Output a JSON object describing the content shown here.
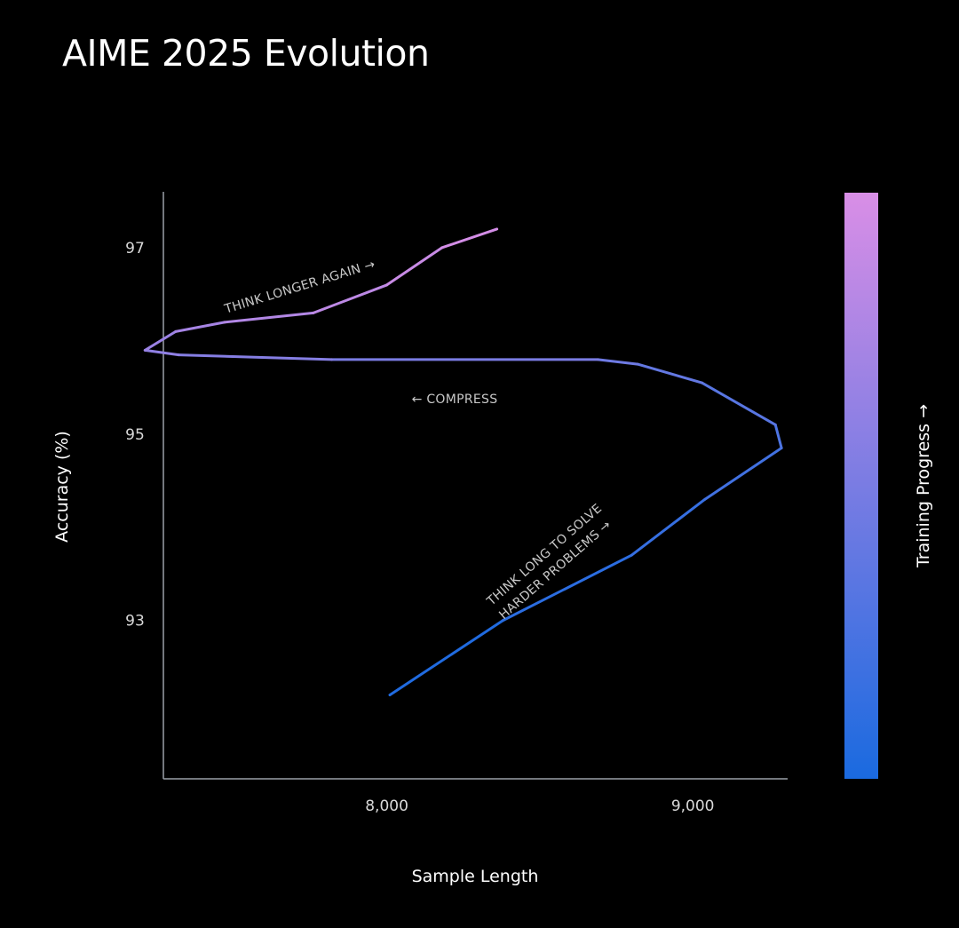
{
  "page": {
    "title": "AIME 2025 Evolution"
  },
  "chart_data": {
    "type": "line",
    "title": "AIME 2025 Evolution",
    "xlabel": "Sample Length",
    "ylabel": "Accuracy (%)",
    "xlim": [
      7270,
      9310
    ],
    "ylim": [
      91.3,
      97.6
    ],
    "xticks": [
      8000,
      9000
    ],
    "xtick_labels": [
      "8,000",
      "9,000"
    ],
    "yticks": [
      93,
      95,
      97
    ],
    "ytick_labels": [
      "93",
      "95",
      "97"
    ],
    "grid": false,
    "colorbar": {
      "label": "Training Progress →",
      "color_start": "#1a6ae0",
      "color_end": "#d98ee6"
    },
    "series": [
      {
        "x": [
          8010,
          8380,
          8800,
          9040,
          9290,
          9270,
          9030,
          8820,
          8690,
          7820,
          7320,
          7210,
          7310,
          7470,
          7760,
          8000,
          8180,
          8360
        ],
        "y": [
          92.2,
          93.0,
          93.7,
          94.3,
          94.85,
          95.1,
          95.55,
          95.75,
          95.8,
          95.8,
          95.85,
          95.9,
          96.1,
          96.2,
          96.3,
          96.6,
          97.0,
          97.2
        ]
      }
    ],
    "annotations": [
      {
        "text": "← COMPRESS"
      },
      {
        "text": "THINK LONGER AGAIN →"
      },
      {
        "text": "THINK LONG TO SOLVE"
      },
      {
        "text": "HARDER PROBLEMS →"
      }
    ]
  }
}
